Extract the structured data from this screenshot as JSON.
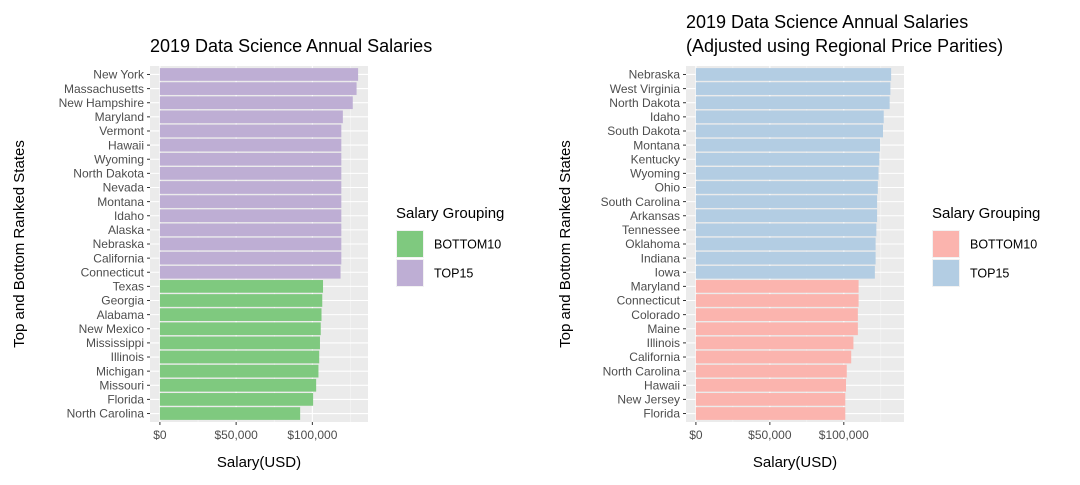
{
  "chart_data": [
    {
      "type": "bar",
      "orientation": "horizontal",
      "title": [
        "2019 Data Science Annual Salaries"
      ],
      "xlabel": "Salary(USD)",
      "ylabel": "Top and Bottom Ranked States",
      "xlim": [
        0,
        130000
      ],
      "x_ticks": [
        0,
        50000,
        100000
      ],
      "x_tick_labels": [
        "$0",
        "$50,000",
        "$100,000"
      ],
      "grid": true,
      "legend": {
        "title": "Salary Grouping",
        "placement": "right",
        "entries": [
          {
            "label": "BOTTOM10",
            "color": "#7fc97f"
          },
          {
            "label": "TOP15",
            "color": "#beaed4"
          }
        ]
      },
      "categories": [
        "New York",
        "Massachusetts",
        "New Hampshire",
        "Maryland",
        "Vermont",
        "Hawaii",
        "Wyoming",
        "North Dakota",
        "Nevada",
        "Montana",
        "Idaho",
        "Alaska",
        "Nebraska",
        "California",
        "Connecticut",
        "Texas",
        "Georgia",
        "Alabama",
        "New Mexico",
        "Mississippi",
        "Illinois",
        "Michigan",
        "Missouri",
        "Florida",
        "North Carolina"
      ],
      "values": [
        130000,
        129000,
        126500,
        120000,
        119000,
        119000,
        119000,
        119000,
        119000,
        119000,
        119000,
        119000,
        119000,
        119000,
        118500,
        107000,
        106500,
        106000,
        105500,
        105000,
        104500,
        104000,
        102500,
        100500,
        92000
      ],
      "groups": [
        "TOP15",
        "TOP15",
        "TOP15",
        "TOP15",
        "TOP15",
        "TOP15",
        "TOP15",
        "TOP15",
        "TOP15",
        "TOP15",
        "TOP15",
        "TOP15",
        "TOP15",
        "TOP15",
        "TOP15",
        "BOTTOM10",
        "BOTTOM10",
        "BOTTOM10",
        "BOTTOM10",
        "BOTTOM10",
        "BOTTOM10",
        "BOTTOM10",
        "BOTTOM10",
        "BOTTOM10",
        "BOTTOM10"
      ]
    },
    {
      "type": "bar",
      "orientation": "horizontal",
      "title": [
        "2019 Data Science Annual Salaries",
        "(Adjusted using Regional Price Parities)"
      ],
      "xlabel": "Salary(USD)",
      "ylabel": "Top and Bottom Ranked States",
      "xlim": [
        0,
        134000
      ],
      "x_ticks": [
        0,
        50000,
        100000
      ],
      "x_tick_labels": [
        "$0",
        "$50,000",
        "$100,000"
      ],
      "grid": true,
      "legend": {
        "title": "Salary Grouping",
        "placement": "right",
        "entries": [
          {
            "label": "BOTTOM10",
            "color": "#fbb4ae"
          },
          {
            "label": "TOP15",
            "color": "#b3cde3"
          }
        ]
      },
      "categories": [
        "Nebraska",
        "West Virginia",
        "North Dakota",
        "Idaho",
        "South Dakota",
        "Montana",
        "Kentucky",
        "Wyoming",
        "Ohio",
        "South Carolina",
        "Arkansas",
        "Tennessee",
        "Oklahoma",
        "Indiana",
        "Iowa",
        "Maryland",
        "Connecticut",
        "Colorado",
        "Maine",
        "Illinois",
        "California",
        "North Carolina",
        "Hawaii",
        "New Jersey",
        "Florida"
      ],
      "values": [
        132000,
        131500,
        131000,
        127000,
        126500,
        124500,
        124000,
        123500,
        123000,
        122500,
        122500,
        122000,
        121500,
        121500,
        121000,
        110000,
        110000,
        109500,
        109500,
        106500,
        105000,
        102000,
        101500,
        101000,
        101000
      ],
      "groups": [
        "TOP15",
        "TOP15",
        "TOP15",
        "TOP15",
        "TOP15",
        "TOP15",
        "TOP15",
        "TOP15",
        "TOP15",
        "TOP15",
        "TOP15",
        "TOP15",
        "TOP15",
        "TOP15",
        "TOP15",
        "BOTTOM10",
        "BOTTOM10",
        "BOTTOM10",
        "BOTTOM10",
        "BOTTOM10",
        "BOTTOM10",
        "BOTTOM10",
        "BOTTOM10",
        "BOTTOM10",
        "BOTTOM10"
      ]
    }
  ],
  "colors": {
    "panel_bg": "#ebebeb",
    "grid_major": "#ffffff",
    "tick_text": "#4d4d4d"
  }
}
